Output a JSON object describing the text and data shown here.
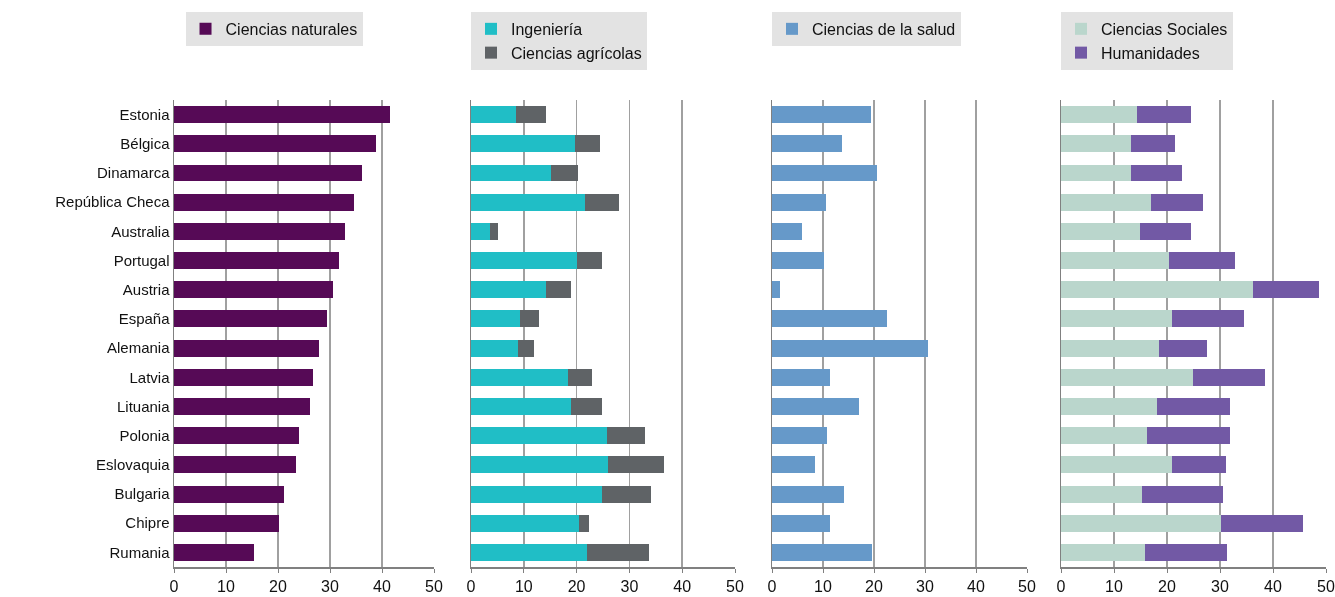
{
  "chart_data": [
    {
      "type": "bar",
      "orientation": "horizontal",
      "stacked": true,
      "categories": [
        "Estonia",
        "Bélgica",
        "Dinamarca",
        "República Checa",
        "Australia",
        "Portugal",
        "Austria",
        "España",
        "Alemania",
        "Latvia",
        "Lituania",
        "Polonia",
        "Eslovaquia",
        "Bulgaria",
        "Chipre",
        "Rumania"
      ],
      "series": [
        {
          "name": "Ciencias naturales",
          "color": "#560a56",
          "values": [
            41.6,
            38.9,
            36.2,
            34.6,
            32.9,
            31.8,
            30.5,
            29.5,
            27.8,
            26.8,
            26.2,
            24.1,
            23.5,
            21.1,
            20.1,
            15.4
          ]
        }
      ],
      "xlim": [
        0,
        50
      ],
      "xticks": [
        0,
        10,
        20,
        30,
        40,
        50
      ],
      "grid": "x",
      "legend": "top"
    },
    {
      "type": "bar",
      "orientation": "horizontal",
      "stacked": true,
      "categories": [
        "Estonia",
        "Bélgica",
        "Dinamarca",
        "República Checa",
        "Australia",
        "Portugal",
        "Austria",
        "España",
        "Alemania",
        "Latvia",
        "Lituania",
        "Polonia",
        "Eslovaquia",
        "Bulgaria",
        "Chipre",
        "Rumania"
      ],
      "series": [
        {
          "name": "Ingeniería",
          "color": "#20bec6",
          "values": [
            8.5,
            19.7,
            15.1,
            21.5,
            3.6,
            20.1,
            14.2,
            9.3,
            8.9,
            18.3,
            18.9,
            25.7,
            26.0,
            24.8,
            20.4,
            21.9
          ]
        },
        {
          "name": "Ciencias agrícolas",
          "color": "#5f6366",
          "values": [
            5.7,
            4.8,
            5.2,
            6.6,
            1.6,
            4.7,
            4.7,
            3.6,
            3.0,
            4.7,
            5.9,
            7.2,
            10.6,
            9.2,
            1.9,
            11.9
          ]
        }
      ],
      "xlim": [
        0,
        50
      ],
      "xticks": [
        0,
        10,
        20,
        30,
        40,
        50
      ],
      "grid": "x",
      "legend": "top",
      "tick_labels": "x"
    },
    {
      "type": "bar",
      "orientation": "horizontal",
      "stacked": true,
      "categories": [
        "Estonia",
        "Bélgica",
        "Dinamarca",
        "República Checa",
        "Australia",
        "Portugal",
        "Austria",
        "España",
        "Alemania",
        "Latvia",
        "Lituania",
        "Polonia",
        "Eslovaquia",
        "Bulgaria",
        "Chipre",
        "Rumania"
      ],
      "series": [
        {
          "name": "Ciencias de la salud",
          "color": "#6699c9",
          "values": [
            19.4,
            13.7,
            20.6,
            10.5,
            5.8,
            10.2,
            1.6,
            22.6,
            30.5,
            11.4,
            17.0,
            10.7,
            8.5,
            14.1,
            11.4,
            19.7
          ]
        }
      ],
      "xlim": [
        0,
        50
      ],
      "xticks": [
        0,
        10,
        20,
        30,
        40,
        50
      ],
      "grid": "x",
      "legend": "top",
      "tick_labels": "x"
    },
    {
      "type": "bar",
      "orientation": "horizontal",
      "stacked": true,
      "categories": [
        "Estonia",
        "Bélgica",
        "Dinamarca",
        "República Checa",
        "Australia",
        "Portugal",
        "Austria",
        "España",
        "Alemania",
        "Latvia",
        "Lituania",
        "Polonia",
        "Eslovaquia",
        "Bulgaria",
        "Chipre",
        "Rumania"
      ],
      "series": [
        {
          "name": "Ciencias Sociales",
          "color": "#bad6cc",
          "values": [
            14.4,
            13.2,
            13.2,
            17.0,
            14.9,
            20.3,
            36.3,
            20.9,
            18.4,
            24.9,
            18.2,
            16.3,
            20.9,
            15.2,
            30.2,
            15.8
          ]
        },
        {
          "name": "Humanidades",
          "color": "#7259a5",
          "values": [
            10.1,
            8.4,
            9.6,
            9.7,
            9.6,
            12.5,
            12.4,
            13.7,
            9.1,
            13.6,
            13.6,
            15.5,
            10.2,
            15.4,
            15.4,
            15.6
          ]
        }
      ],
      "xlim": [
        0,
        50
      ],
      "xticks": [
        0,
        10,
        20,
        30,
        40,
        50
      ],
      "grid": "x",
      "legend": "top",
      "tick_labels": "x"
    }
  ]
}
